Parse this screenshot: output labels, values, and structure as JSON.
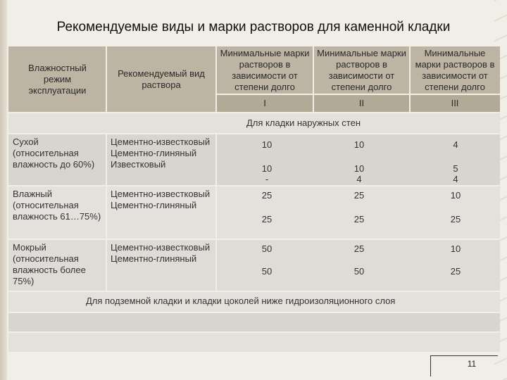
{
  "title": "Рекомендуемые виды и марки растворов для каменной кладки",
  "header": {
    "col1": "Влажностный режим эксплуатации",
    "col2": "Рекомендуемый вид раствора",
    "col3": "Минимальные марки растворов в зависимости от степени долго",
    "col4": "Минимальные марки растворов в зависимости от степени долго",
    "col5": "Минимальные марки растворов в зависимости от степени долго",
    "deg1": "I",
    "deg2": "II",
    "deg3": "III"
  },
  "section_outer": "Для кладки наружных стен",
  "rows": [
    {
      "regime": "Сухой (относительная влажность до 60%)",
      "mortars": "Цементно-известковый Цементно-глиняный Известковый",
      "v1a": "10",
      "v2a": "10",
      "v3a": "4",
      "v1b": "10",
      "v2b": "10",
      "v3b": "5",
      "v1c": "-",
      "v2c": "4",
      "v3c": "4"
    },
    {
      "regime": "Влажный (относительная влажность 61…75%)",
      "mortars": "Цементно-известковый Цементно-глиняный",
      "v1a": "25",
      "v2a": "25",
      "v3a": "10",
      "v1b": "25",
      "v2b": "25",
      "v3b": "25"
    },
    {
      "regime": "Мокрый (относительная влажность более 75%)",
      "mortars": "Цементно-известковый Цементно-глиняный",
      "v1a": "50",
      "v2a": "25",
      "v3a": "10",
      "v1b": "50",
      "v2b": "50",
      "v3b": "25"
    }
  ],
  "section_underground": "Для подземной кладки и кладки цоколей ниже гидроизоляционного слоя",
  "page_number": "11",
  "colors": {
    "background": "#f1eee8",
    "header": "#bdb4a4",
    "row": "#e4e1dc"
  }
}
